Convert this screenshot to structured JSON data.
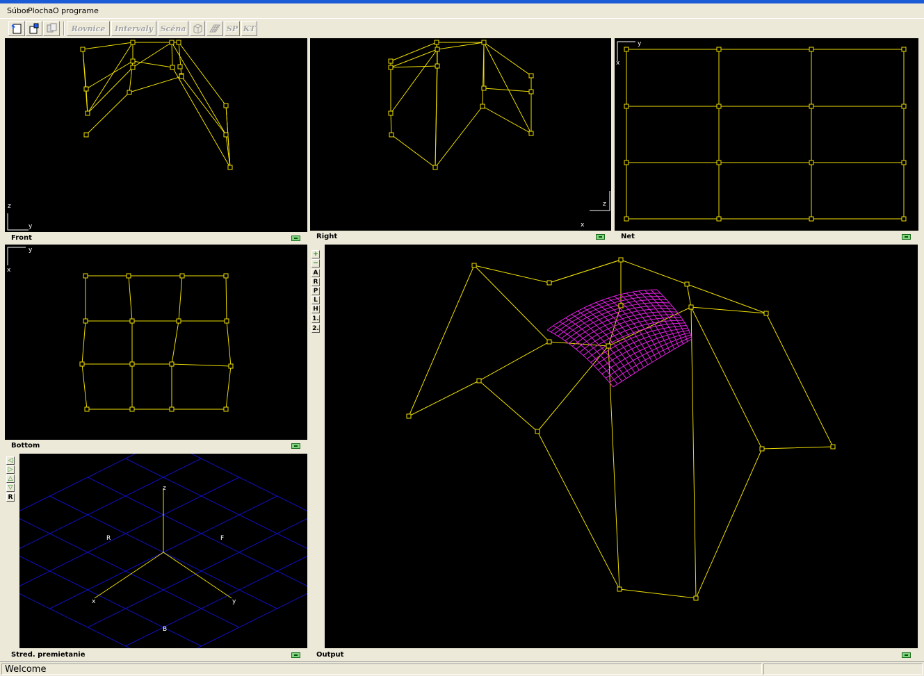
{
  "menu": [
    "Súbor",
    "Plocha",
    "O programe"
  ],
  "toolbar": {
    "icons": [
      "new-document-icon",
      "open-file-icon",
      "copy-icon"
    ],
    "buttons": [
      "Rovnice",
      "Intervaly",
      "Scéna",
      "SP",
      "KT"
    ],
    "cube_icon": "cube-icon",
    "grid_icon": "grid-surface-icon"
  },
  "panels": {
    "front": "Front",
    "right": "Right",
    "net": "Net",
    "bottom": "Bottom",
    "center": "Stred. premietanie",
    "output": "Output"
  },
  "axes": {
    "front": [
      "z",
      "y"
    ],
    "right": [
      "z",
      "x"
    ],
    "net": [
      "y",
      "x"
    ],
    "bottom": [
      "y",
      "x"
    ],
    "center": [
      "z",
      "x",
      "y",
      "R",
      "F",
      "B"
    ]
  },
  "output_tools": [
    "+",
    "−",
    "A",
    "R",
    "P",
    "L",
    "H",
    "1.",
    "2."
  ],
  "center_tools": [
    "◁",
    "▷",
    "△",
    "▽",
    "R"
  ],
  "colors": {
    "wire": "#f0e000",
    "surface": "#e020e0",
    "grid": "#1010c0",
    "background": "#000000",
    "titlebar": "#1c5bd6"
  },
  "status": {
    "text": "Welcome"
  }
}
